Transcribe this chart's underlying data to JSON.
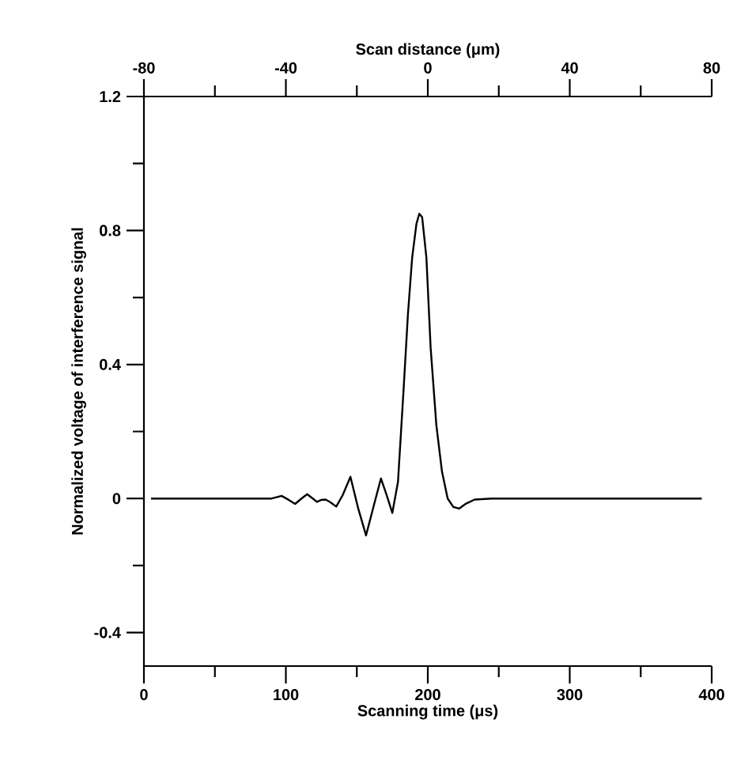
{
  "chart_data": {
    "type": "line",
    "xlabel": "Scanning time (μs)",
    "x2label": "Scan distance (μm)",
    "ylabel": "Normalized voltage of interference signal",
    "xlim": [
      0,
      400
    ],
    "xticks": [
      0,
      {
        "value": 50,
        "label": null
      },
      100,
      {
        "value": 150,
        "label": null
      },
      200,
      {
        "value": 250,
        "label": null
      },
      300,
      {
        "value": 350,
        "label": null
      },
      400
    ],
    "x2lim": [
      -80,
      80
    ],
    "x2ticks": [
      -80,
      {
        "value": -60,
        "label": null
      },
      -40,
      {
        "value": -20,
        "label": null
      },
      0,
      {
        "value": 20,
        "label": null
      },
      40,
      {
        "value": 60,
        "label": null
      },
      80
    ],
    "ylim": [
      -0.5,
      1.2
    ],
    "yticks": [
      {
        "value": -0.4,
        "label": "-0.4"
      },
      {
        "value": -0.2,
        "label": null
      },
      0,
      {
        "value": 0.2,
        "label": null
      },
      0.4,
      {
        "value": 0.6,
        "label": null
      },
      0.8,
      {
        "value": 1.0,
        "label": null
      },
      1.2
    ],
    "marker": "none",
    "line_style": "solid",
    "series": [
      {
        "color": "#000000",
        "x": [
          5,
          60,
          90,
          97,
          102,
          106.5,
          111,
          115,
          119,
          122,
          125,
          128,
          131,
          135.5,
          140,
          145.5,
          151,
          156.5,
          162,
          167,
          171,
          175,
          179,
          183,
          186,
          189,
          192,
          194,
          196,
          199,
          202,
          206,
          210,
          214,
          218,
          222,
          227,
          233,
          245,
          300,
          393
        ],
        "values": [
          0,
          0,
          0,
          0.008,
          -0.004,
          -0.016,
          0,
          0.013,
          0,
          -0.01,
          -0.004,
          -0.003,
          -0.01,
          -0.024,
          0.01,
          0.065,
          -0.03,
          -0.11,
          -0.02,
          0.06,
          0.01,
          -0.043,
          0.05,
          0.33,
          0.55,
          0.72,
          0.82,
          0.85,
          0.84,
          0.72,
          0.45,
          0.22,
          0.08,
          0,
          -0.025,
          -0.03,
          -0.015,
          -0.003,
          0,
          0,
          0
        ]
      }
    ]
  }
}
